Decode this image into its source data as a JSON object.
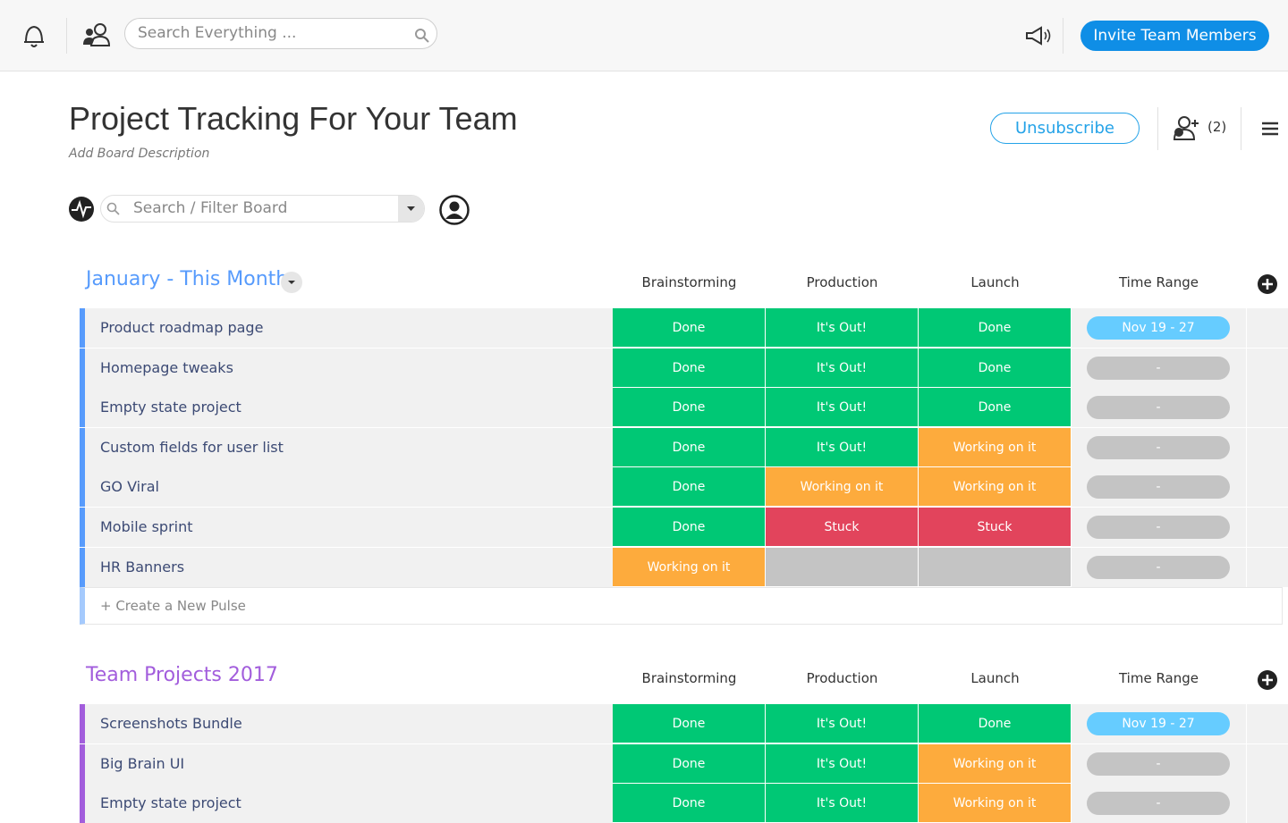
{
  "topbar": {
    "search_placeholder": "Search Everything ...",
    "invite_button": "Invite Team Members"
  },
  "board": {
    "title": "Project Tracking For Your Team",
    "description": "Add Board Description",
    "unsubscribe": "Unsubscribe",
    "members": "(2)",
    "filter_placeholder": "Search / Filter Board"
  },
  "groups": [
    {
      "title": "January - This Month",
      "color": "#579bfc",
      "columns": [
        "Brainstorming",
        "Production",
        "Launch",
        "Time Range"
      ],
      "rows": [
        {
          "name": "Product roadmap page",
          "cells": [
            {
              "label": "Done",
              "color": "#00c875"
            },
            {
              "label": "It's Out!",
              "color": "#00c875"
            },
            {
              "label": "Done",
              "color": "#00c875"
            }
          ],
          "time": {
            "label": "Nov 19 - 27",
            "color": "#66ccff"
          }
        },
        {
          "name": "Homepage tweaks",
          "cells": [
            {
              "label": "Done",
              "color": "#00c875"
            },
            {
              "label": "It's Out!",
              "color": "#00c875"
            },
            {
              "label": "Done",
              "color": "#00c875"
            }
          ],
          "time": {
            "label": "-",
            "color": "#c4c4c4"
          }
        },
        {
          "name": "Empty state project",
          "cells": [
            {
              "label": "Done",
              "color": "#00c875"
            },
            {
              "label": "It's Out!",
              "color": "#00c875"
            },
            {
              "label": "Done",
              "color": "#00c875"
            }
          ],
          "time": {
            "label": "-",
            "color": "#c4c4c4"
          }
        },
        {
          "name": "Custom fields for user list",
          "cells": [
            {
              "label": "Done",
              "color": "#00c875"
            },
            {
              "label": "It's Out!",
              "color": "#00c875"
            },
            {
              "label": "Working on it",
              "color": "#fdab3d"
            }
          ],
          "time": {
            "label": "-",
            "color": "#c4c4c4"
          }
        },
        {
          "name": "GO Viral",
          "cells": [
            {
              "label": "Done",
              "color": "#00c875"
            },
            {
              "label": "Working on it",
              "color": "#fdab3d"
            },
            {
              "label": "Working on it",
              "color": "#fdab3d"
            }
          ],
          "time": {
            "label": "-",
            "color": "#c4c4c4"
          }
        },
        {
          "name": "Mobile sprint",
          "cells": [
            {
              "label": "Done",
              "color": "#00c875"
            },
            {
              "label": "Stuck",
              "color": "#e2445c"
            },
            {
              "label": "Stuck",
              "color": "#e2445c"
            }
          ],
          "time": {
            "label": "-",
            "color": "#c4c4c4"
          }
        },
        {
          "name": "HR Banners",
          "cells": [
            {
              "label": "Working on it",
              "color": "#fdab3d"
            },
            {
              "color": "#c4c4c4"
            },
            {
              "color": "#c4c4c4"
            }
          ],
          "time": {
            "label": "-",
            "color": "#c4c4c4"
          }
        }
      ],
      "new_pulse": "+ Create a New Pulse"
    },
    {
      "title": "Team Projects 2017",
      "color": "#a25ddc",
      "columns": [
        "Brainstorming",
        "Production",
        "Launch",
        "Time Range"
      ],
      "rows": [
        {
          "name": "Screenshots Bundle",
          "cells": [
            {
              "label": "Done",
              "color": "#00c875"
            },
            {
              "label": "It's Out!",
              "color": "#00c875"
            },
            {
              "label": "Done",
              "color": "#00c875"
            }
          ],
          "time": {
            "label": "Nov 19 - 27",
            "color": "#66ccff"
          }
        },
        {
          "name": "Big Brain UI",
          "cells": [
            {
              "label": "Done",
              "color": "#00c875"
            },
            {
              "label": "It's Out!",
              "color": "#00c875"
            },
            {
              "label": "Working on it",
              "color": "#fdab3d"
            }
          ],
          "time": {
            "label": "-",
            "color": "#c4c4c4"
          }
        },
        {
          "name": "Empty state project",
          "cells": [
            {
              "label": "Done",
              "color": "#00c875"
            },
            {
              "label": "It's Out!",
              "color": "#00c875"
            },
            {
              "label": "Working on it",
              "color": "#fdab3d"
            }
          ],
          "time": {
            "label": "-",
            "color": "#c4c4c4"
          }
        }
      ]
    }
  ]
}
